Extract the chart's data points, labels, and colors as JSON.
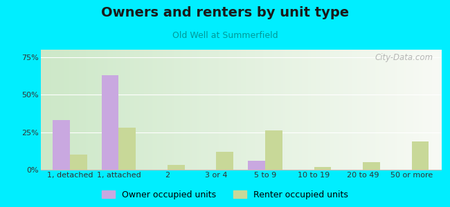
{
  "title": "Owners and renters by unit type",
  "subtitle": "Old Well at Summerfield",
  "categories": [
    "1, detached",
    "1, attached",
    "2",
    "3 or 4",
    "5 to 9",
    "10 to 19",
    "20 to 49",
    "50 or more"
  ],
  "owner_values": [
    33,
    63,
    0,
    0,
    6,
    0,
    0,
    0
  ],
  "renter_values": [
    10,
    28,
    3,
    12,
    26,
    2,
    5,
    19
  ],
  "owner_color": "#c9a8e0",
  "renter_color": "#c8d898",
  "ylim": [
    0,
    80
  ],
  "yticks": [
    0,
    25,
    50,
    75
  ],
  "ytick_labels": [
    "0%",
    "25%",
    "50%",
    "75%"
  ],
  "outer_background": "#00eeff",
  "bar_width": 0.35,
  "title_fontsize": 14,
  "subtitle_fontsize": 9,
  "legend_fontsize": 9,
  "tick_fontsize": 8,
  "watermark": "City-Data.com",
  "bg_left_color": "#cde8c8",
  "bg_right_color": "#f5f5f0"
}
